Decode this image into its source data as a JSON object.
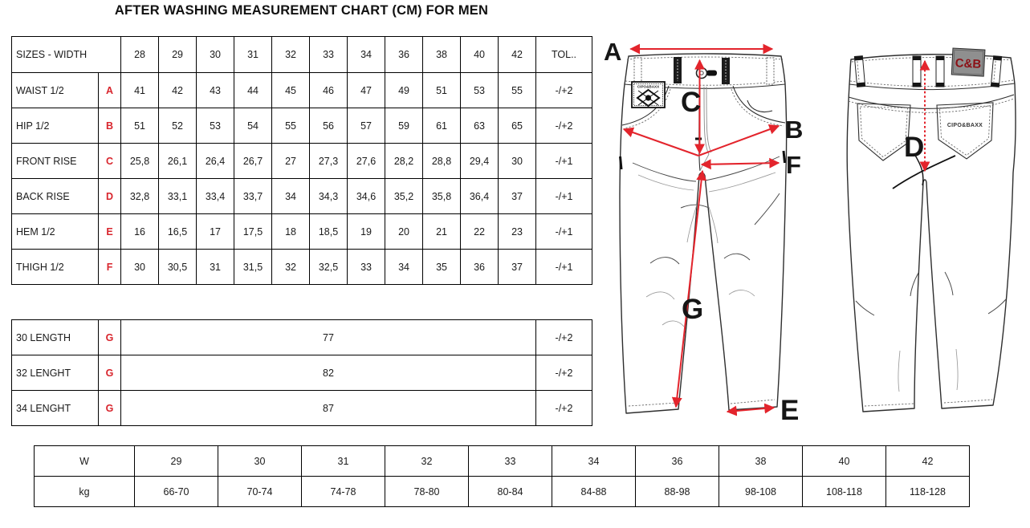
{
  "title": "AFTER WASHING MEASUREMENT CHART (CM) FOR MEN",
  "colors": {
    "arrow_red": "#e3242c",
    "code_red": "#d8252d",
    "ink": "#1a1a1a",
    "patch_gray": "#8f8f8f",
    "patch_text_red": "#8c1016"
  },
  "size_table": {
    "header": {
      "label": "SIZES - WIDTH",
      "sizes": [
        "28",
        "29",
        "30",
        "31",
        "32",
        "33",
        "34",
        "36",
        "38",
        "40",
        "42"
      ],
      "tolerance": "TOL.."
    },
    "rows": [
      {
        "label": "WAIST 1/2",
        "code": "A",
        "values": [
          "41",
          "42",
          "43",
          "44",
          "45",
          "46",
          "47",
          "49",
          "51",
          "53",
          "55"
        ],
        "tol": "-/+2"
      },
      {
        "label": "HIP 1/2",
        "code": "B",
        "values": [
          "51",
          "52",
          "53",
          "54",
          "55",
          "56",
          "57",
          "59",
          "61",
          "63",
          "65"
        ],
        "tol": "-/+2"
      },
      {
        "label": "FRONT RISE",
        "code": "C",
        "values": [
          "25,8",
          "26,1",
          "26,4",
          "26,7",
          "27",
          "27,3",
          "27,6",
          "28,2",
          "28,8",
          "29,4",
          "30"
        ],
        "tol": "-/+1"
      },
      {
        "label": "BACK RISE",
        "code": "D",
        "values": [
          "32,8",
          "33,1",
          "33,4",
          "33,7",
          "34",
          "34,3",
          "34,6",
          "35,2",
          "35,8",
          "36,4",
          "37"
        ],
        "tol": "-/+1"
      },
      {
        "label": "HEM 1/2",
        "code": "E",
        "values": [
          "16",
          "16,5",
          "17",
          "17,5",
          "18",
          "18,5",
          "19",
          "20",
          "21",
          "22",
          "23"
        ],
        "tol": "-/+1"
      },
      {
        "label": "THIGH 1/2",
        "code": "F",
        "values": [
          "30",
          "30,5",
          "31",
          "31,5",
          "32",
          "32,5",
          "33",
          "34",
          "35",
          "36",
          "37"
        ],
        "tol": "-/+1"
      }
    ]
  },
  "length_table": {
    "rows": [
      {
        "label": "30 LENGTH",
        "code": "G",
        "value": "77",
        "tol": "-/+2"
      },
      {
        "label": "32 LENGHT",
        "code": "G",
        "value": "82",
        "tol": "-/+2"
      },
      {
        "label": "34 LENGHT",
        "code": "G",
        "value": "87",
        "tol": "-/+2"
      }
    ]
  },
  "weight_table": {
    "rows": [
      {
        "label": "W",
        "values": [
          "29",
          "30",
          "31",
          "32",
          "33",
          "34",
          "36",
          "38",
          "40",
          "42"
        ]
      },
      {
        "label": "kg",
        "values": [
          "66-70",
          "70-74",
          "74-78",
          "78-80",
          "80-84",
          "84-88",
          "88-98",
          "98-108",
          "108-118",
          "118-128"
        ]
      }
    ]
  },
  "diagram": {
    "letters": {
      "a": "A",
      "b": "B",
      "c": "C",
      "d": "D",
      "e": "E",
      "f": "F",
      "g": "G"
    },
    "front_patch_text": "CIPO&BAXX",
    "back_patch_label": "C&B",
    "back_pocket_text": "CIPO&BAXX"
  }
}
